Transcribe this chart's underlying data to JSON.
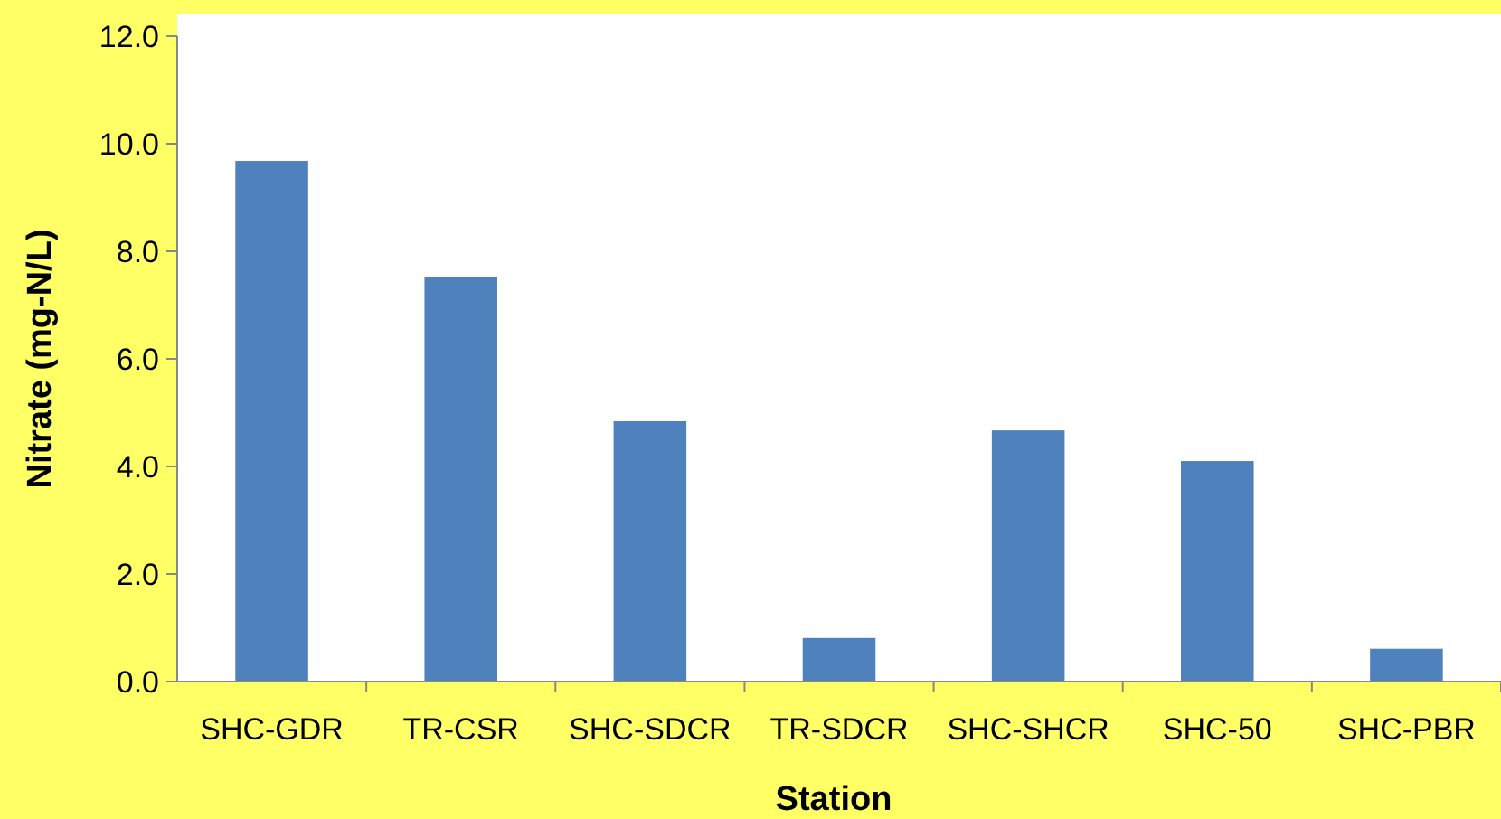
{
  "chart_data": {
    "type": "bar",
    "xlabel": "Station",
    "ylabel": "Nitrate (mg-N/L)",
    "categories": [
      "SHC-GDR",
      "TR-CSR",
      "SHC-SDCR",
      "TR-SDCR",
      "SHC-SHCR",
      "SHC-50",
      "SHC-PBR"
    ],
    "values": [
      9.68,
      7.53,
      4.84,
      0.81,
      4.67,
      4.1,
      0.61
    ],
    "color": "#4f81bd",
    "ylim": [
      0,
      12
    ],
    "yticks": [
      {
        "value": 0,
        "label": "0.0"
      },
      {
        "value": 2,
        "label": "2.0"
      },
      {
        "value": 4,
        "label": "4.0"
      },
      {
        "value": 6,
        "label": "6.0"
      },
      {
        "value": 8,
        "label": "8.0"
      },
      {
        "value": 10,
        "label": "10.0"
      },
      {
        "value": 12,
        "label": "12.0"
      }
    ],
    "grid": false
  }
}
